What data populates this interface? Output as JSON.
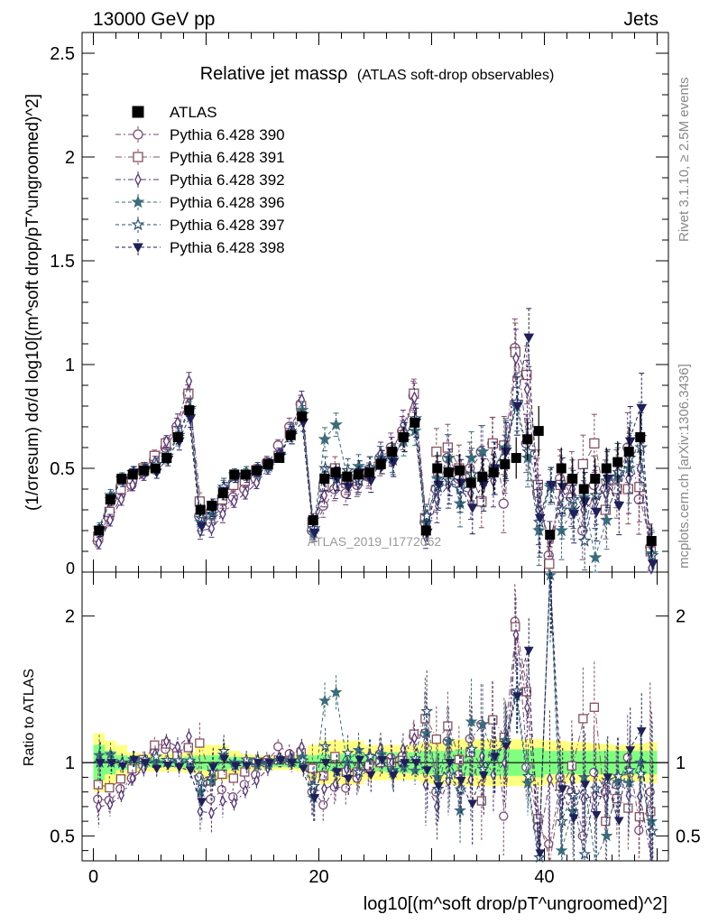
{
  "header": {
    "left": "13000 GeV pp",
    "right": "Jets"
  },
  "side": {
    "top": "Rivet 3.1.10, ≥ 2.5M events",
    "bottom": "mcplots.cern.ch [arXiv:1306.3436]"
  },
  "chart_data": {
    "type": "scatter",
    "title": "Relative jet massρ",
    "subtitle": "(ATLAS soft-drop observables)",
    "watermark": "ATLAS_2019_I1772062",
    "xlabel": "log10[(m^soft drop/pT^ungroomed)^2]",
    "ylabel": "(1/σresum) dσ/d log10[(m^soft drop/pT^ungroomed)^2]",
    "ratio_ylabel": "Ratio to ATLAS",
    "xlim": [
      -1,
      51
    ],
    "ylim": [
      0,
      2.6
    ],
    "ratio_ylim": [
      0.33,
      2.3
    ],
    "x_ticks": [
      0,
      20,
      40
    ],
    "y_ticks": [
      0.5,
      1,
      1.5,
      2,
      2.5
    ],
    "ratio_y_ticks": [
      0.5,
      1,
      2
    ],
    "legend_position": "top-left",
    "grid": false,
    "x": [
      0.5,
      1.5,
      2.5,
      3.5,
      4.5,
      5.5,
      6.5,
      7.5,
      8.5,
      9.5,
      10.5,
      11.5,
      12.5,
      13.5,
      14.5,
      15.5,
      16.5,
      17.5,
      18.5,
      19.5,
      20.5,
      21.5,
      22.5,
      23.5,
      24.5,
      25.5,
      26.5,
      27.5,
      28.5,
      29.5,
      30.5,
      31.5,
      32.5,
      33.5,
      34.5,
      35.5,
      36.5,
      37.5,
      38.5,
      39.5,
      40.5,
      41.5,
      42.5,
      43.5,
      44.5,
      45.5,
      46.5,
      47.5,
      48.5,
      49.5
    ],
    "atlas": {
      "name": "ATLAS",
      "values": [
        0.2,
        0.35,
        0.45,
        0.47,
        0.49,
        0.5,
        0.55,
        0.65,
        0.78,
        0.3,
        0.32,
        0.38,
        0.47,
        0.47,
        0.49,
        0.52,
        0.55,
        0.66,
        0.75,
        0.25,
        0.45,
        0.48,
        0.46,
        0.47,
        0.48,
        0.52,
        0.58,
        0.65,
        0.72,
        0.2,
        0.5,
        0.48,
        0.49,
        0.43,
        0.46,
        0.48,
        0.52,
        0.55,
        0.64,
        0.68,
        0.18,
        0.5,
        0.45,
        0.4,
        0.45,
        0.5,
        0.53,
        0.58,
        0.65,
        0.15
      ],
      "errors": [
        0.02,
        0.02,
        0.02,
        0.02,
        0.02,
        0.02,
        0.02,
        0.03,
        0.03,
        0.03,
        0.03,
        0.03,
        0.02,
        0.02,
        0.02,
        0.02,
        0.02,
        0.03,
        0.03,
        0.03,
        0.04,
        0.04,
        0.04,
        0.04,
        0.04,
        0.04,
        0.05,
        0.05,
        0.05,
        0.04,
        0.08,
        0.08,
        0.08,
        0.09,
        0.09,
        0.09,
        0.1,
        0.1,
        0.1,
        0.12,
        0.06,
        0.1,
        0.1,
        0.1,
        0.1,
        0.1,
        0.1,
        0.12,
        0.12,
        0.08
      ],
      "band_total": [
        0.2,
        0.15,
        0.12,
        0.07,
        0.06,
        0.06,
        0.06,
        0.06,
        0.07,
        0.12,
        0.12,
        0.12,
        0.08,
        0.06,
        0.05,
        0.05,
        0.05,
        0.05,
        0.06,
        0.12,
        0.15,
        0.15,
        0.15,
        0.15,
        0.12,
        0.12,
        0.12,
        0.12,
        0.12,
        0.14,
        0.15,
        0.15,
        0.16,
        0.16,
        0.16,
        0.16,
        0.16,
        0.16,
        0.16,
        0.16,
        0.15,
        0.15,
        0.14,
        0.14,
        0.13,
        0.13,
        0.12,
        0.12,
        0.13,
        0.14
      ],
      "band_stat": [
        0.12,
        0.08,
        0.05,
        0.04,
        0.03,
        0.03,
        0.03,
        0.03,
        0.04,
        0.05,
        0.05,
        0.05,
        0.04,
        0.03,
        0.03,
        0.03,
        0.03,
        0.03,
        0.04,
        0.05,
        0.06,
        0.06,
        0.06,
        0.06,
        0.06,
        0.06,
        0.07,
        0.07,
        0.07,
        0.08,
        0.08,
        0.08,
        0.09,
        0.09,
        0.09,
        0.09,
        0.09,
        0.09,
        0.09,
        0.1,
        0.08,
        0.08,
        0.08,
        0.08,
        0.08,
        0.08,
        0.08,
        0.08,
        0.08,
        0.08
      ],
      "colors": {
        "marker": "#000000",
        "band_total": "#ffff80",
        "band_stat": "#80ff80"
      }
    },
    "series": [
      {
        "name": "Pythia 6.428 390",
        "marker": "circle",
        "color": "#7a4a78",
        "dash": "6,3,2,3",
        "values": [
          0.15,
          0.26,
          0.37,
          0.42,
          0.48,
          0.54,
          0.6,
          0.7,
          0.86,
          0.27,
          0.24,
          0.31,
          0.36,
          0.4,
          0.45,
          0.53,
          0.61,
          0.7,
          0.81,
          0.2,
          0.32,
          0.4,
          0.38,
          0.42,
          0.46,
          0.55,
          0.6,
          0.68,
          0.85,
          0.24,
          0.4,
          0.55,
          0.45,
          0.5,
          0.58,
          0.62,
          0.33,
          1.08,
          0.62,
          0.38,
          0.08,
          0.45,
          0.36,
          0.2,
          0.42,
          0.4,
          0.45,
          0.6,
          0.35,
          0.12
        ]
      },
      {
        "name": "Pythia 6.428 391",
        "marker": "square",
        "color": "#8a5060",
        "dash": "7,3,1,3",
        "values": [
          0.17,
          0.29,
          0.4,
          0.45,
          0.5,
          0.56,
          0.62,
          0.68,
          0.86,
          0.34,
          0.28,
          0.35,
          0.42,
          0.44,
          0.49,
          0.52,
          0.56,
          0.67,
          0.8,
          0.24,
          0.41,
          0.5,
          0.43,
          0.44,
          0.47,
          0.52,
          0.58,
          0.66,
          0.86,
          0.26,
          0.58,
          0.6,
          0.5,
          0.46,
          0.34,
          0.62,
          0.61,
          1.06,
          0.95,
          0.42,
          0.04,
          0.42,
          0.44,
          0.52,
          0.62,
          0.3,
          0.4,
          0.4,
          0.41,
          0.1
        ]
      },
      {
        "name": "Pythia 6.428 392",
        "marker": "diamond",
        "color": "#55337a",
        "dash": "6,3,2,3",
        "values": [
          0.14,
          0.25,
          0.35,
          0.42,
          0.47,
          0.53,
          0.63,
          0.72,
          0.92,
          0.2,
          0.21,
          0.28,
          0.34,
          0.38,
          0.43,
          0.5,
          0.57,
          0.68,
          0.83,
          0.2,
          0.37,
          0.41,
          0.44,
          0.43,
          0.5,
          0.57,
          0.58,
          0.71,
          0.84,
          0.17,
          0.35,
          0.42,
          0.4,
          0.38,
          0.48,
          0.44,
          0.52,
          1.03,
          0.88,
          0.3,
          0.16,
          0.36,
          0.4,
          0.3,
          0.35,
          0.38,
          0.48,
          0.45,
          0.5,
          0.02
        ]
      },
      {
        "name": "Pythia 6.428 396",
        "marker": "star",
        "color": "#3a6d7c",
        "dash": "4,3",
        "values": [
          0.21,
          0.37,
          0.45,
          0.48,
          0.49,
          0.5,
          0.55,
          0.65,
          0.78,
          0.24,
          0.28,
          0.4,
          0.47,
          0.47,
          0.48,
          0.51,
          0.56,
          0.67,
          0.78,
          0.19,
          0.64,
          0.71,
          0.46,
          0.51,
          0.5,
          0.55,
          0.55,
          0.63,
          0.68,
          0.24,
          0.45,
          0.55,
          0.33,
          0.55,
          0.58,
          0.5,
          0.6,
          0.8,
          0.55,
          0.2,
          0.41,
          0.2,
          0.3,
          0.36,
          0.07,
          0.25,
          0.46,
          0.5,
          0.65,
          0.09
        ]
      },
      {
        "name": "Pythia 6.428 397",
        "marker": "star-open",
        "color": "#2e5270",
        "dash": "4,3",
        "values": [
          0.2,
          0.35,
          0.45,
          0.48,
          0.5,
          0.52,
          0.56,
          0.66,
          0.79,
          0.26,
          0.3,
          0.41,
          0.46,
          0.48,
          0.5,
          0.52,
          0.56,
          0.66,
          0.76,
          0.21,
          0.5,
          0.45,
          0.49,
          0.44,
          0.5,
          0.53,
          0.54,
          0.65,
          0.74,
          0.27,
          0.41,
          0.44,
          0.4,
          0.47,
          0.44,
          0.5,
          0.59,
          0.82,
          0.58,
          0.24,
          0.42,
          0.3,
          0.35,
          0.15,
          0.37,
          0.44,
          0.48,
          0.55,
          0.6,
          0.08
        ]
      },
      {
        "name": "Pythia 6.428 398",
        "marker": "triangle-down",
        "color": "#1f1f5a",
        "dash": "4,3",
        "values": [
          0.2,
          0.35,
          0.44,
          0.48,
          0.49,
          0.48,
          0.54,
          0.63,
          0.74,
          0.22,
          0.31,
          0.39,
          0.46,
          0.46,
          0.49,
          0.52,
          0.56,
          0.66,
          0.72,
          0.19,
          0.45,
          0.45,
          0.41,
          0.48,
          0.44,
          0.53,
          0.53,
          0.65,
          0.72,
          0.19,
          0.42,
          0.48,
          0.43,
          0.31,
          0.42,
          0.5,
          0.58,
          0.8,
          1.13,
          0.26,
          0.42,
          0.41,
          0.28,
          0.34,
          0.29,
          0.45,
          0.32,
          0.63,
          0.79,
          0.04
        ]
      }
    ]
  }
}
